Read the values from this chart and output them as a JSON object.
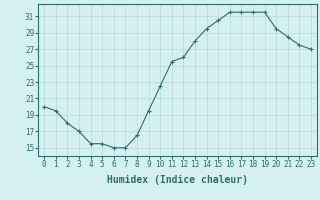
{
  "x": [
    0,
    1,
    2,
    3,
    4,
    5,
    6,
    7,
    8,
    9,
    10,
    11,
    12,
    13,
    14,
    15,
    16,
    17,
    18,
    19,
    20,
    21,
    22,
    23
  ],
  "y": [
    20,
    19.5,
    18,
    17,
    15.5,
    15.5,
    15,
    15,
    16.5,
    19.5,
    22.5,
    25.5,
    26,
    28,
    29.5,
    30.5,
    31.5,
    31.5,
    31.5,
    31.5,
    29.5,
    28.5,
    27.5,
    27
  ],
  "line_color": "#2e6e6e",
  "marker": "+",
  "marker_size": 3,
  "bg_color": "#d4f0f0",
  "grid_color_major": "#b8d8d8",
  "grid_color_minor": "#cce8e8",
  "axis_color": "#2e6e6e",
  "xlabel": "Humidex (Indice chaleur)",
  "xlim": [
    -0.5,
    23.5
  ],
  "ylim": [
    14,
    32.5
  ],
  "yticks": [
    15,
    17,
    19,
    21,
    23,
    25,
    27,
    29,
    31
  ],
  "xticks": [
    0,
    1,
    2,
    3,
    4,
    5,
    6,
    7,
    8,
    9,
    10,
    11,
    12,
    13,
    14,
    15,
    16,
    17,
    18,
    19,
    20,
    21,
    22,
    23
  ],
  "font_size": 5.5,
  "label_font_size": 7
}
